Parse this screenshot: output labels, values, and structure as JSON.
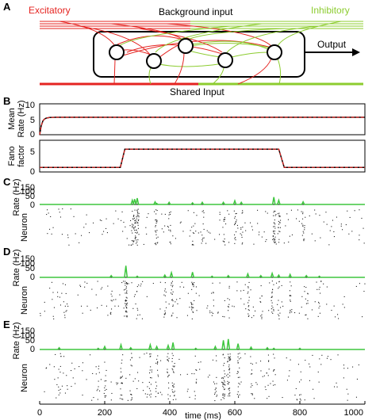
{
  "figure": {
    "panel_letters": {
      "a": "A",
      "b": "B",
      "c": "C",
      "d": "D",
      "e": "E"
    },
    "schematic": {
      "excitatory_label": "Excitatory",
      "background_label": "Background input",
      "inhibitory_label": "Inhibitory",
      "output_label": "Output",
      "shared_label": "Shared Input",
      "colors": {
        "excitatory": "#e52421",
        "inhibitory": "#8ccc2f",
        "frame": "#000000"
      }
    },
    "panel_b": {
      "mean_rate_label_line1": "Mean",
      "mean_rate_label_line2": "Rate (Hz)",
      "fano_label_line1": "Fano",
      "fano_label_line2": "factor",
      "mean_rate_ticks": [
        "0",
        "5",
        "10"
      ],
      "fano_ticks": [
        "0",
        "5"
      ]
    },
    "raster_panels": {
      "rate_label": "Rate (Hz)",
      "neuron_label": "Neuron",
      "rate_ticks": [
        "0",
        "50",
        "100",
        "150"
      ]
    },
    "x_axis": {
      "label": "time (ms)",
      "ticks": [
        "0",
        "200",
        "400",
        "600",
        "800",
        "1000"
      ]
    }
  },
  "chart_data": [
    {
      "type": "line",
      "panel": "B-top",
      "ylabel": "Mean Rate (Hz)",
      "ylim": [
        0,
        10
      ],
      "xlim": [
        0,
        1000
      ],
      "series": [
        {
          "color": "#000000",
          "x": [
            0,
            5,
            10,
            15,
            20,
            30,
            50,
            1000
          ],
          "values": [
            0,
            3,
            4.6,
            5.2,
            5.5,
            5.7,
            5.8,
            5.8
          ]
        },
        {
          "color": "#e52421",
          "style": "dashed",
          "x": [
            0,
            5,
            10,
            15,
            20,
            30,
            50,
            1000
          ],
          "values": [
            0,
            3,
            4.6,
            5.2,
            5.5,
            5.7,
            5.8,
            5.8
          ]
        }
      ]
    },
    {
      "type": "line",
      "panel": "B-bottom",
      "ylabel": "Fano factor",
      "ylim": [
        0,
        7.5
      ],
      "xlim": [
        0,
        1000
      ],
      "series": [
        {
          "color": "#000000",
          "x": [
            0,
            248,
            262,
            735,
            752,
            1000
          ],
          "values": [
            1,
            1,
            5.8,
            5.8,
            1,
            1
          ]
        },
        {
          "color": "#e52421",
          "style": "dashed",
          "x": [
            0,
            248,
            262,
            735,
            752,
            1000
          ],
          "values": [
            1,
            1,
            5.8,
            5.8,
            1,
            1
          ]
        }
      ]
    },
    {
      "type": "line",
      "panel": "C",
      "ylabel": "Rate (Hz)",
      "ylim": [
        0,
        150
      ],
      "xlim": [
        0,
        1000
      ],
      "series": [
        {
          "color": "#3ec63e",
          "x": [
            285,
            292,
            300,
            355,
            360,
            398,
            470,
            500,
            565,
            600,
            620,
            720,
            735,
            810
          ],
          "values": [
            40,
            50,
            60,
            25,
            10,
            20,
            15,
            20,
            20,
            35,
            20,
            70,
            40,
            25
          ]
        }
      ]
    },
    {
      "type": "line",
      "panel": "D",
      "ylabel": "Rate (Hz)",
      "ylim": [
        0,
        150
      ],
      "xlim": [
        0,
        1000
      ],
      "series": [
        {
          "color": "#3ec63e",
          "x": [
            220,
            265,
            300,
            385,
            405,
            470,
            530,
            580,
            640,
            680,
            715,
            735,
            770,
            820,
            860
          ],
          "values": [
            15,
            100,
            10,
            20,
            40,
            45,
            10,
            15,
            30,
            15,
            35,
            20,
            25,
            15,
            10
          ]
        }
      ]
    },
    {
      "type": "line",
      "panel": "E",
      "ylabel": "Rate (Hz)",
      "ylim": [
        0,
        150
      ],
      "xlim": [
        0,
        1000
      ],
      "series": [
        {
          "color": "#3ec63e",
          "x": [
            60,
            180,
            200,
            250,
            280,
            340,
            360,
            395,
            410,
            480,
            540,
            565,
            580,
            610,
            650,
            700,
            720,
            800
          ],
          "values": [
            15,
            10,
            25,
            40,
            15,
            40,
            25,
            35,
            60,
            10,
            25,
            80,
            90,
            50,
            20,
            15,
            10,
            10
          ]
        }
      ]
    }
  ]
}
